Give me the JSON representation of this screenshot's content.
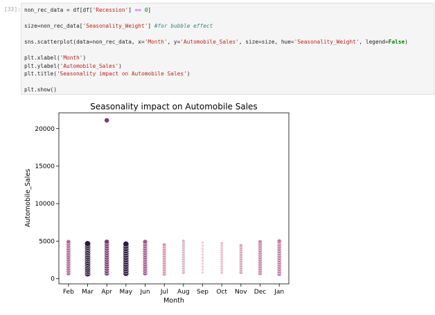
{
  "cell": {
    "prompt": "[33]:",
    "lines": [
      [
        {
          "t": "non_rec_data = df[df[",
          "c": "fn"
        },
        {
          "t": "'Recession'",
          "c": "str"
        },
        {
          "t": "] ",
          "c": "fn"
        },
        {
          "t": "==",
          "c": "op"
        },
        {
          "t": " ",
          "c": "fn"
        },
        {
          "t": "0",
          "c": "num"
        },
        {
          "t": "]",
          "c": "fn"
        }
      ],
      [],
      [
        {
          "t": "size=non_rec_data[",
          "c": "fn"
        },
        {
          "t": "'Seasonality_Weight'",
          "c": "str"
        },
        {
          "t": "] ",
          "c": "fn"
        },
        {
          "t": "#for bubble effect",
          "c": "cm"
        }
      ],
      [],
      [
        {
          "t": "sns.scatterplot(data=non_rec_data, x=",
          "c": "fn"
        },
        {
          "t": "'Month'",
          "c": "str"
        },
        {
          "t": ", y=",
          "c": "fn"
        },
        {
          "t": "'Automobile_Sales'",
          "c": "str"
        },
        {
          "t": ", size=size, hue=",
          "c": "fn"
        },
        {
          "t": "'Seasonality_Weight'",
          "c": "str"
        },
        {
          "t": ", legend=",
          "c": "fn"
        },
        {
          "t": "False",
          "c": "kw"
        },
        {
          "t": ")",
          "c": "fn"
        }
      ],
      [],
      [
        {
          "t": "plt.xlabel(",
          "c": "fn"
        },
        {
          "t": "'Month'",
          "c": "str"
        },
        {
          "t": ")",
          "c": "fn"
        }
      ],
      [
        {
          "t": "plt.ylabel(",
          "c": "fn"
        },
        {
          "t": "'Automobile_Sales'",
          "c": "str"
        },
        {
          "t": ")",
          "c": "fn"
        }
      ],
      [
        {
          "t": "plt.title(",
          "c": "fn"
        },
        {
          "t": "'Seasonality impact on Automobile Sales'",
          "c": "str"
        },
        {
          "t": ")",
          "c": "fn"
        }
      ],
      [],
      [
        {
          "t": "plt.show()",
          "c": "fn"
        }
      ]
    ]
  },
  "chart_data": {
    "type": "scatter",
    "title": "Seasonality impact on Automobile Sales",
    "xlabel": "Month",
    "ylabel": "Automobile_Sales",
    "categories": [
      "Feb",
      "Mar",
      "Apr",
      "May",
      "Jun",
      "Jul",
      "Aug",
      "Sep",
      "Oct",
      "Nov",
      "Dec",
      "Jan"
    ],
    "ylim": [
      -700,
      22100
    ],
    "yticks": [
      0,
      5000,
      10000,
      15000,
      20000
    ],
    "legend": "none",
    "grid": false,
    "colors": {
      "Feb": "#b06a96",
      "Mar": "#2b1a3e",
      "Apr": "#7a3f72",
      "May": "#2d1b40",
      "Jun": "#a05a8a",
      "Jul": "#d49bb3",
      "Aug": "#e0b3c4",
      "Sep": "#efd1da",
      "Oct": "#e6c1ce",
      "Nov": "#d8a7bb",
      "Dec": "#c98aa9",
      "Jan": "#c27fa2"
    },
    "sizes": {
      "Feb": 3.2,
      "Mar": 4.3,
      "Apr": 3.6,
      "May": 4.2,
      "Jun": 3.4,
      "Jul": 2.9,
      "Aug": 2.5,
      "Sep": 2.1,
      "Oct": 2.3,
      "Nov": 2.6,
      "Dec": 3.0,
      "Jan": 3.1
    },
    "points": {
      "Feb": [
        700,
        1000,
        1300,
        1600,
        1900,
        2200,
        2500,
        2800,
        3100,
        3400,
        3700,
        4000,
        4300,
        4600,
        4900
      ],
      "Mar": [
        650,
        900,
        1150,
        1400,
        1650,
        1900,
        2150,
        2400,
        2650,
        2900,
        3150,
        3400,
        3650,
        3900,
        4150,
        4400,
        4650
      ],
      "Apr": [
        700,
        1000,
        1300,
        1600,
        1900,
        2200,
        2500,
        2800,
        3100,
        3400,
        3700,
        4000,
        4300,
        4600,
        4900,
        21100
      ],
      "May": [
        700,
        1000,
        1300,
        1600,
        1900,
        2200,
        2500,
        2800,
        3100,
        3400,
        3700,
        4000,
        4300,
        4600
      ],
      "Jun": [
        700,
        1000,
        1300,
        1600,
        1900,
        2200,
        2500,
        2800,
        3100,
        3400,
        3700,
        4000,
        4300,
        4600,
        4900
      ],
      "Jul": [
        600,
        900,
        1200,
        1500,
        1800,
        2100,
        2400,
        2700,
        3000,
        3300,
        3600,
        3900,
        4200,
        4500
      ],
      "Aug": [
        800,
        1100,
        1400,
        1700,
        2000,
        2300,
        2600,
        2900,
        3200,
        3500,
        3800,
        4100,
        4400,
        4700,
        5000
      ],
      "Sep": [
        800,
        1200,
        1600,
        2000,
        2400,
        2800,
        3200,
        3600,
        4000,
        4400,
        4800
      ],
      "Oct": [
        800,
        1100,
        1400,
        1700,
        2000,
        2300,
        2600,
        2900,
        3200,
        3500,
        3800,
        4100,
        4400,
        4700
      ],
      "Nov": [
        800,
        1100,
        1400,
        1700,
        2000,
        2300,
        2600,
        2900,
        3200,
        3500,
        3800,
        4100,
        4400
      ],
      "Dec": [
        700,
        1000,
        1300,
        1600,
        1900,
        2200,
        2500,
        2800,
        3100,
        3400,
        3700,
        4000,
        4300,
        4600,
        4900
      ],
      "Jan": [
        600,
        900,
        1200,
        1500,
        1800,
        2100,
        2400,
        2700,
        3000,
        3300,
        3600,
        3900,
        4200,
        4500,
        4800,
        5000
      ]
    }
  }
}
